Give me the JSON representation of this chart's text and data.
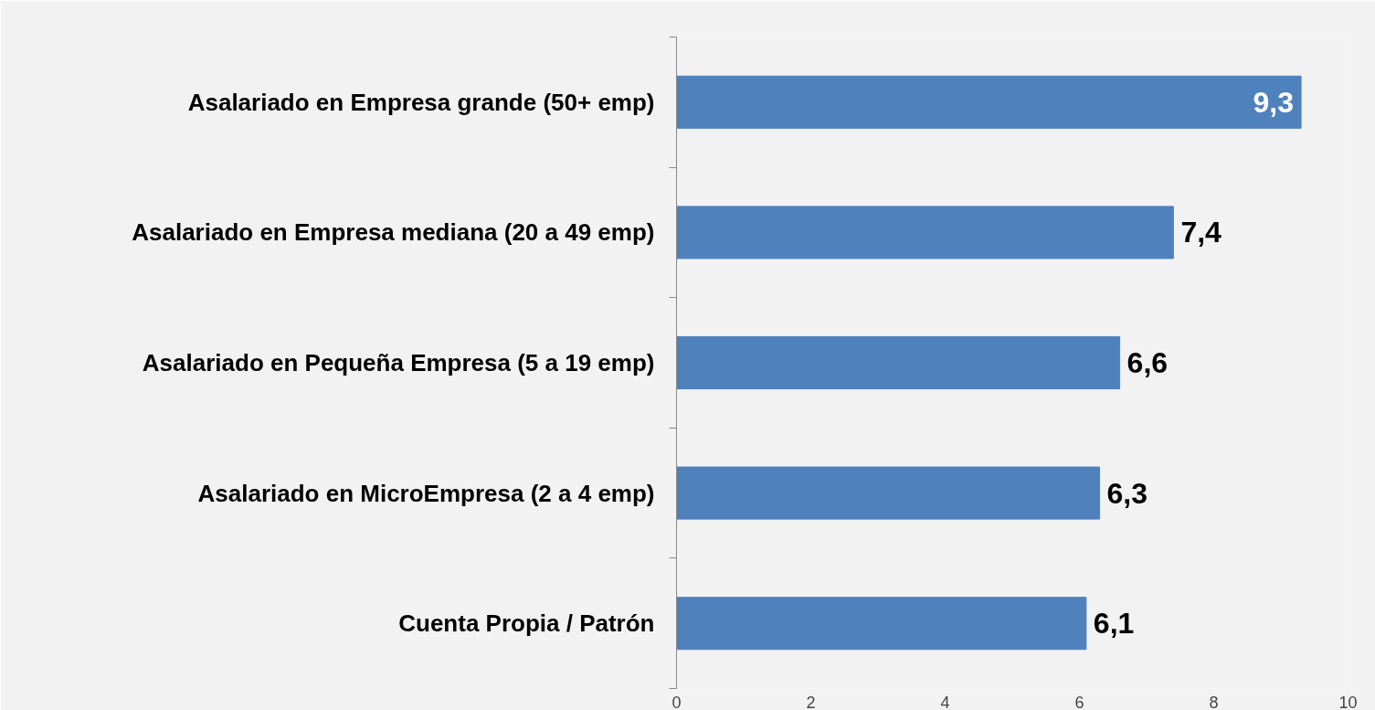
{
  "chart_data": {
    "type": "bar",
    "orientation": "horizontal",
    "categories": [
      "Asalariado en Empresa grande (50+ emp)",
      "Asalariado en Empresa mediana (20 a 49 emp)",
      "Asalariado en Pequeña Empresa (5 a 19 emp)",
      "Asalariado en MicroEmpresa (2 a 4 emp)",
      "Cuenta Propia / Patrón"
    ],
    "values": [
      9.3,
      7.4,
      6.6,
      6.3,
      6.1
    ],
    "value_labels": [
      "9,3",
      "7,4",
      "6,6",
      "6,3",
      "6,1"
    ],
    "color": "#4f81bd",
    "xlim": [
      0,
      10
    ],
    "xticks": [
      0,
      2,
      4,
      6,
      8,
      10
    ],
    "grid": false
  }
}
